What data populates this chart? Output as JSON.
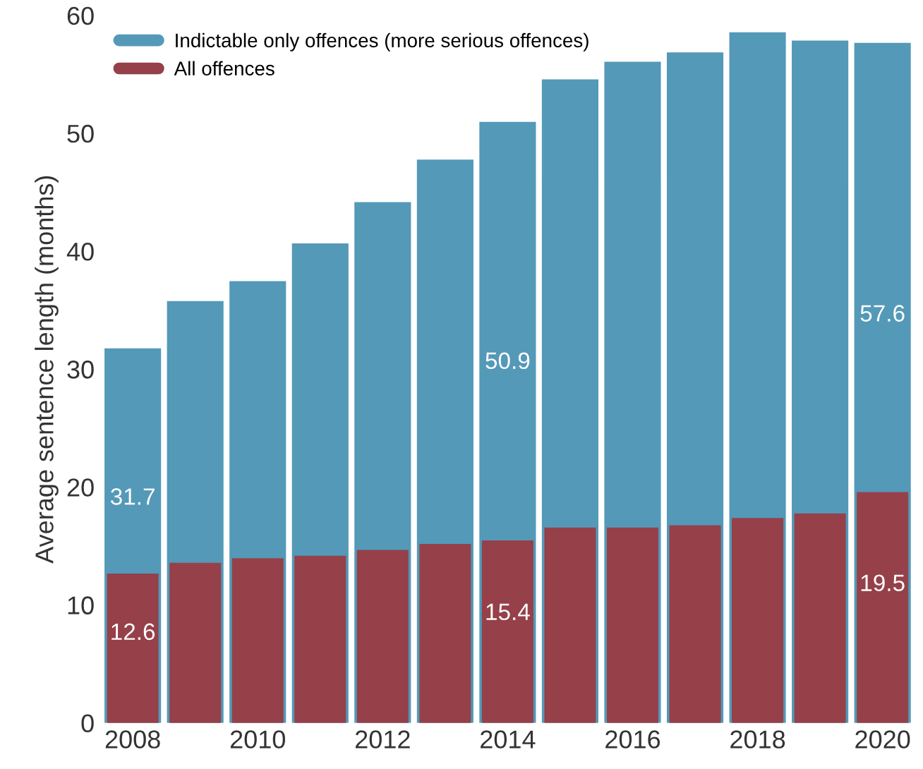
{
  "chart_data": {
    "type": "bar",
    "ylabel": "Average sentence length (months)",
    "x": [
      2008,
      2009,
      2010,
      2011,
      2012,
      2013,
      2014,
      2015,
      2016,
      2017,
      2018,
      2019,
      2020
    ],
    "xlim": [
      2007.5,
      2020.5
    ],
    "xticks": [
      2008,
      2010,
      2012,
      2014,
      2016,
      2018,
      2020
    ],
    "ylim": [
      0,
      60
    ],
    "yticks": [
      0,
      10,
      20,
      30,
      40,
      50,
      60
    ],
    "grid": false,
    "legend": "top left",
    "series": [
      {
        "name": "Indictable only offences (more serious offences)",
        "color": "#5499b8",
        "values": [
          31.7,
          35.7,
          37.4,
          40.6,
          44.1,
          47.7,
          50.9,
          54.5,
          56.0,
          56.8,
          58.5,
          57.8,
          57.6
        ],
        "value_labels": [
          "31.7",
          null,
          null,
          null,
          null,
          null,
          "50.9",
          null,
          null,
          null,
          null,
          null,
          "57.6"
        ]
      },
      {
        "name": "All offences",
        "color": "#96404a",
        "values": [
          12.6,
          13.5,
          13.9,
          14.1,
          14.6,
          15.1,
          15.4,
          16.5,
          16.5,
          16.7,
          17.3,
          17.7,
          19.5
        ],
        "value_labels": [
          "12.6",
          null,
          null,
          null,
          null,
          null,
          "15.4",
          null,
          null,
          null,
          null,
          null,
          "19.5"
        ]
      }
    ]
  }
}
